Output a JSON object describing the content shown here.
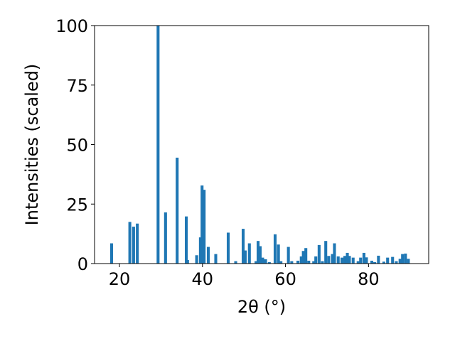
{
  "chart_data": {
    "type": "bar",
    "xlabel": "2θ (°)",
    "ylabel": "Intensities (scaled)",
    "xlim": [
      14.0,
      94.5
    ],
    "ylim": [
      0,
      100
    ],
    "xticks": [
      20,
      40,
      60,
      80
    ],
    "yticks": [
      0,
      25,
      50,
      75,
      100
    ],
    "grid": false,
    "bar_color": "#1f77b4",
    "bar_width": 0.7,
    "x": [
      18.1,
      22.5,
      23.4,
      24.3,
      29.3,
      31.1,
      33.9,
      36.1,
      36.4,
      38.6,
      39.5,
      39.9,
      40.4,
      41.4,
      43.2,
      46.2,
      48.0,
      49.8,
      50.3,
      51.3,
      52.9,
      53.4,
      53.9,
      54.5,
      55.2,
      56.1,
      57.5,
      58.3,
      58.9,
      60.7,
      61.5,
      63.0,
      63.8,
      64.3,
      64.9,
      65.6,
      66.8,
      67.3,
      68.1,
      68.9,
      69.7,
      70.4,
      71.3,
      71.8,
      72.7,
      73.6,
      74.3,
      74.9,
      75.4,
      76.3,
      77.5,
      78.1,
      78.9,
      79.5,
      80.8,
      81.5,
      82.4,
      83.7,
      84.6,
      85.8,
      86.7,
      87.6,
      88.2,
      88.9,
      89.6
    ],
    "values": [
      8.5,
      17.5,
      15.5,
      16.8,
      100,
      21.5,
      44.5,
      19.8,
      1.5,
      3.5,
      11.0,
      32.8,
      31.0,
      7.0,
      4.0,
      13.0,
      1.0,
      14.6,
      5.5,
      8.5,
      1.0,
      9.5,
      7.3,
      2.5,
      1.8,
      0.6,
      12.3,
      8.0,
      1.0,
      7.0,
      1.0,
      1.2,
      3.0,
      5.3,
      6.5,
      1.2,
      1.0,
      3.0,
      7.8,
      1.0,
      9.5,
      3.2,
      4.0,
      8.5,
      3.0,
      2.5,
      3.2,
      4.5,
      3.2,
      2.5,
      1.0,
      2.5,
      4.5,
      2.6,
      1.2,
      0.6,
      3.3,
      0.8,
      2.5,
      2.8,
      1.0,
      2.0,
      4.0,
      4.2,
      2.0
    ]
  }
}
